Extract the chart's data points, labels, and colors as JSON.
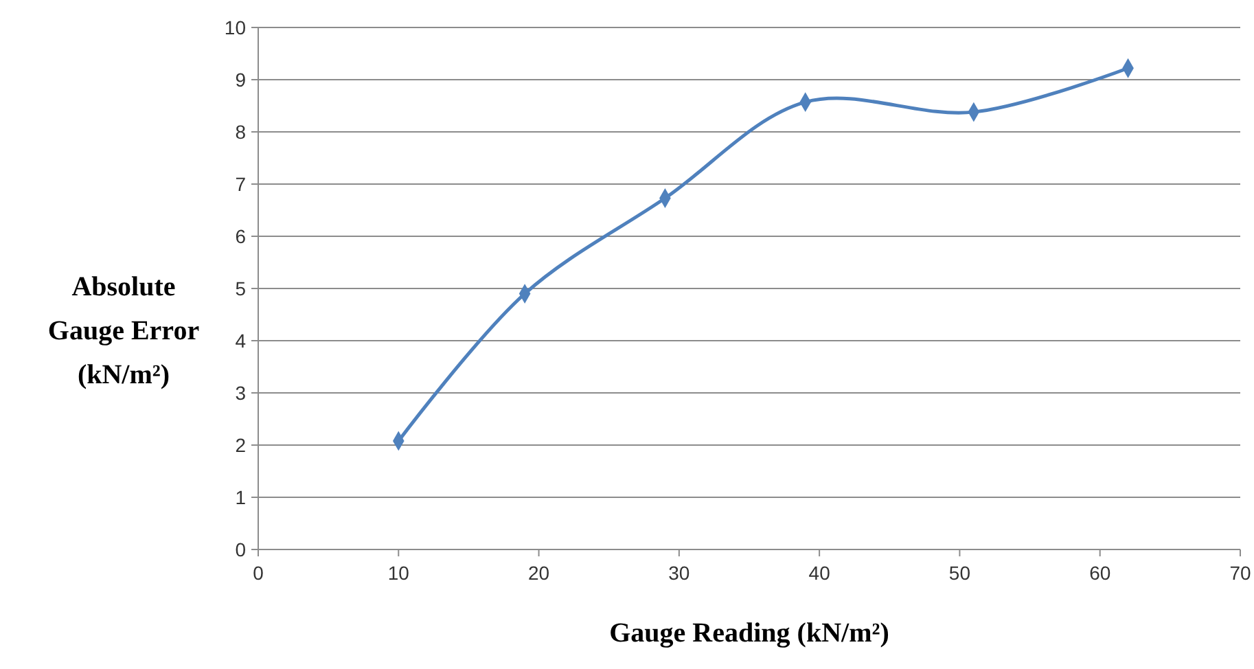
{
  "chart_data": {
    "type": "line",
    "xlabel": "Gauge Reading (kN/m²)",
    "ylabel": "Absolute Gauge Error (kN/m²)",
    "x": [
      10,
      19,
      29,
      39,
      51,
      62
    ],
    "series": [
      {
        "color": "#4f81bd",
        "values": [
          2.08,
          4.9,
          6.73,
          8.57,
          8.38,
          9.22
        ]
      }
    ],
    "xlim": [
      0,
      70
    ],
    "xticks": [
      0,
      10,
      20,
      30,
      40,
      50,
      60,
      70
    ],
    "ylim": [
      0,
      10
    ],
    "yticks": [
      0,
      1,
      2,
      3,
      4,
      5,
      6,
      7,
      8,
      9,
      10
    ],
    "grid": "y",
    "marker": "diamond",
    "line_style": "solid"
  }
}
